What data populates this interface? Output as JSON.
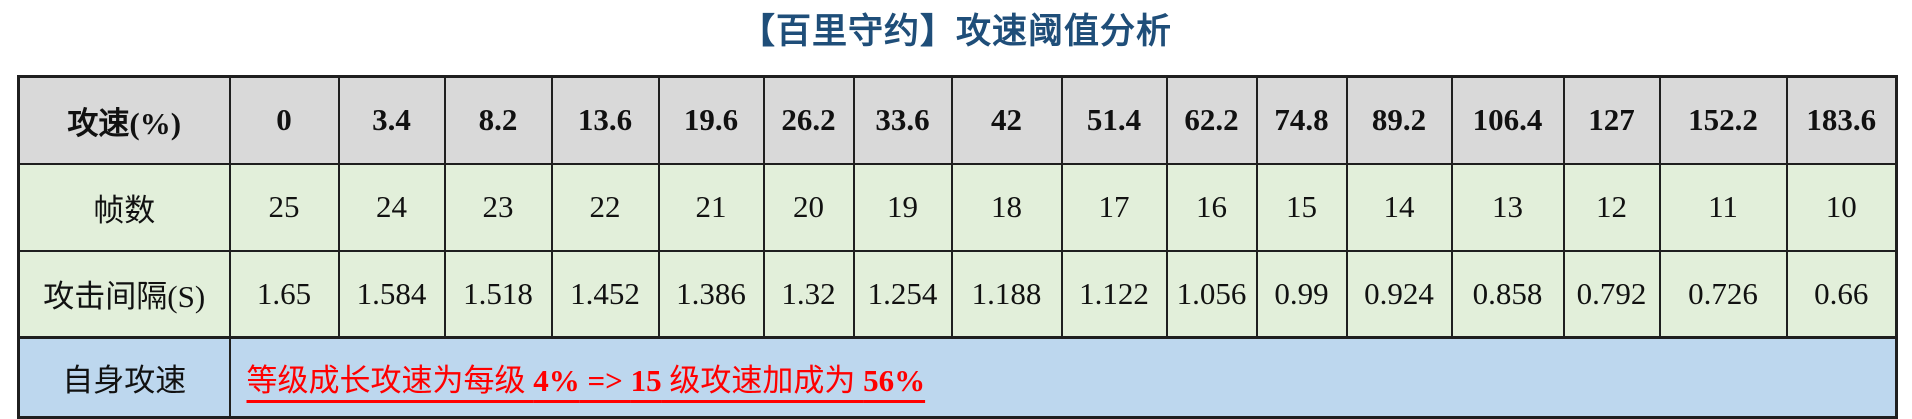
{
  "title": "【百里守约】攻速阈值分析",
  "colors": {
    "title_blue": "#1F4E79",
    "header_gray": "#D9D9D9",
    "row_green": "#E2EFDA",
    "footer_blue": "#BDD7EE",
    "note_red": "#FF0000",
    "border": "#1f1f1f"
  },
  "table": {
    "rows": [
      {
        "label": "攻速(%)",
        "values": [
          "0",
          "3.4",
          "8.2",
          "13.6",
          "19.6",
          "26.2",
          "33.6",
          "42",
          "51.4",
          "62.2",
          "74.8",
          "89.2",
          "106.4",
          "127",
          "152.2",
          "183.6"
        ]
      },
      {
        "label": "帧数",
        "values": [
          "25",
          "24",
          "23",
          "22",
          "21",
          "20",
          "19",
          "18",
          "17",
          "16",
          "15",
          "14",
          "13",
          "12",
          "11",
          "10"
        ]
      },
      {
        "label": "攻击间隔(S)",
        "values": [
          "1.65",
          "1.584",
          "1.518",
          "1.452",
          "1.386",
          "1.32",
          "1.254",
          "1.188",
          "1.122",
          "1.056",
          "0.99",
          "0.924",
          "0.858",
          "0.792",
          "0.726",
          "0.66"
        ]
      }
    ],
    "footer": {
      "label": "自身攻速",
      "note_parts": [
        {
          "text": "等级成长攻速为每级 ",
          "bold": false
        },
        {
          "text": "4%",
          "bold": true
        },
        {
          "text": " => ",
          "bold": true
        },
        {
          "text": "15",
          "bold": true
        },
        {
          "text": " 级攻速加成为 ",
          "bold": false
        },
        {
          "text": "56%",
          "bold": true
        }
      ]
    }
  }
}
